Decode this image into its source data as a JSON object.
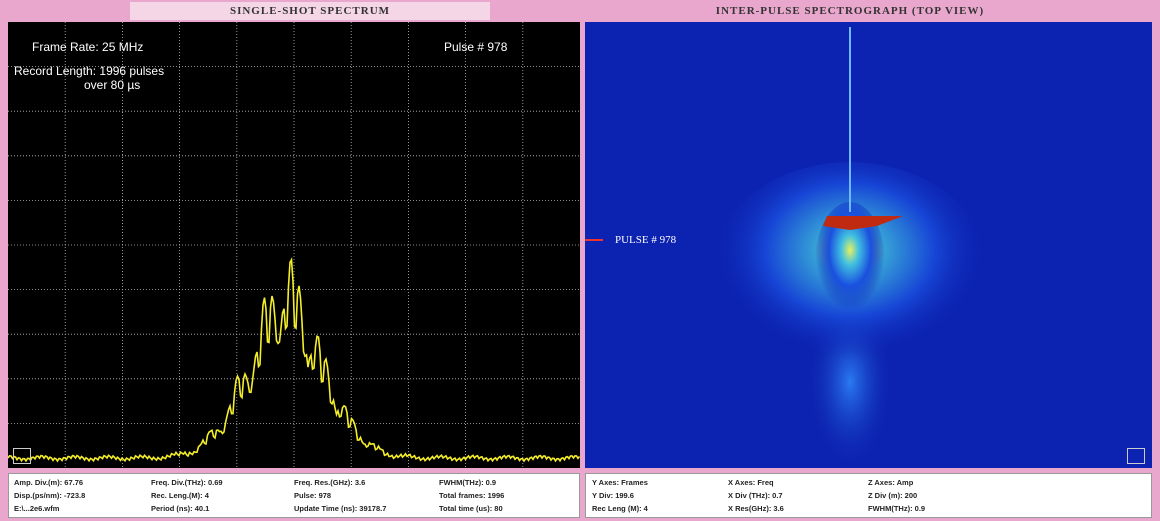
{
  "left_panel": {
    "title": "SINGLE-SHOT SPECTRUM",
    "overlay": {
      "frame_rate": "Frame Rate: 25 MHz",
      "pulse": "Pulse # 978",
      "record_length": "Record Length: 1996 pulses",
      "record_time": "over 80 µs"
    },
    "info": {
      "rows": [
        [
          "Amp. Div.(m): 67.76",
          "Freq. Div.(THz): 0.69",
          "Freq. Res.(GHz): 3.6",
          "FWHM(THz): 0.9"
        ],
        [
          "Disp.(ps/nm): -723.8",
          "Rec. Leng.(M): 4",
          "Pulse: 978",
          "Total frames: 1996"
        ],
        [
          "E:\\...2e6.wfm",
          "Period (ns): 40.1",
          "Update Time (ns): 39178.7",
          "Total time (us): 80"
        ]
      ]
    }
  },
  "right_panel": {
    "title": "INTER-PULSE SPECTROGRAPH (TOP VIEW)",
    "marker": "PULSE # 978",
    "info": {
      "rows": [
        [
          "Y Axes: Frames",
          "X Axes: Freq",
          "Z Axes: Amp"
        ],
        [
          "Y Div: 199.6",
          "X Div (THz): 0.7",
          "Z Div (m): 200"
        ],
        [
          "Rec Leng (M): 4",
          "X Res(GHz): 3.6",
          "FWHM(THz): 0.9"
        ]
      ]
    }
  }
}
